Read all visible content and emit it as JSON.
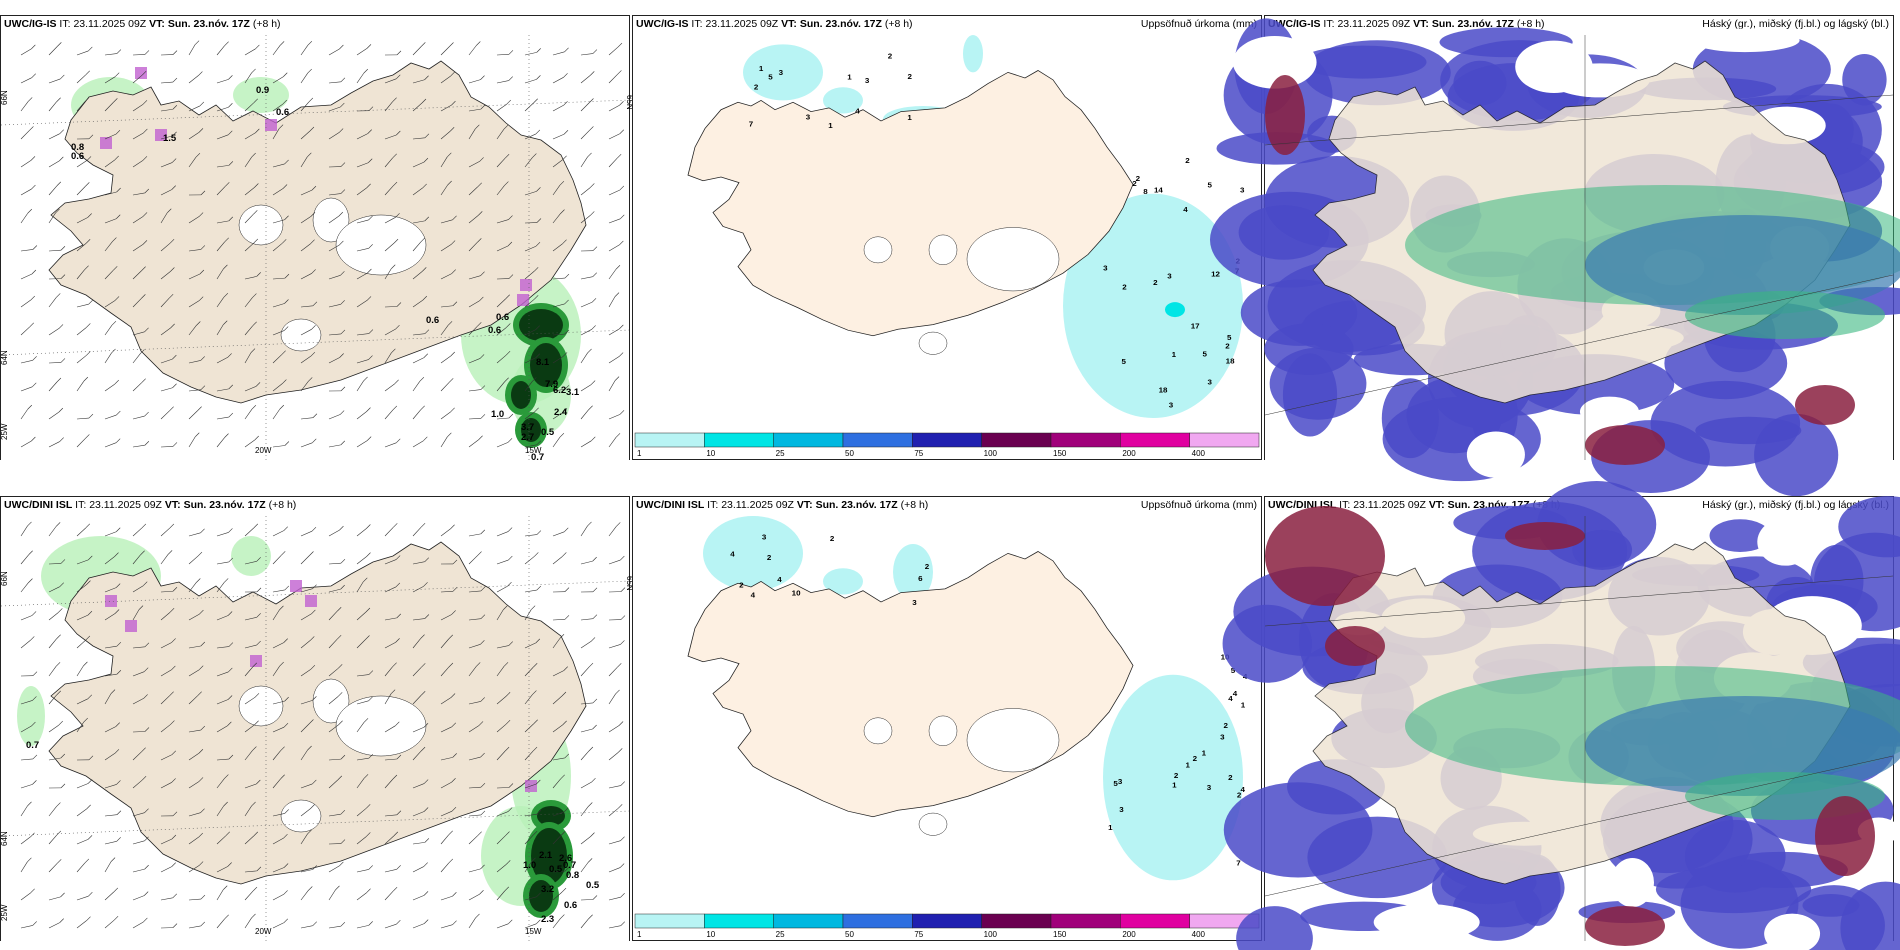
{
  "panels": [
    {
      "row": 0,
      "col": 0,
      "type": "precip-wind",
      "model": "UWC/IG-IS",
      "it_label": "IT:",
      "it_value": "23.11.2025 09Z",
      "vt_label": "VT:",
      "vt_value": "Sun. 23.nóv. 17Z",
      "lead": "(+8 h)",
      "right_title": "",
      "axis_labels": [
        "66N",
        "64N",
        "25W",
        "20W",
        "15W",
        "65N"
      ],
      "values": [
        "0.9",
        "0.6",
        "0.8",
        "0.6",
        "1.5",
        "0.6",
        "0.6",
        "0.6",
        "8.1",
        "7.9",
        "6.2",
        "3.1",
        "2.4",
        "1.0",
        "3.7",
        "2.7",
        "0.5",
        "0.7"
      ]
    },
    {
      "row": 0,
      "col": 1,
      "type": "accum-precip",
      "model": "UWC/IG-IS",
      "it_label": "IT:",
      "it_value": "23.11.2025 09Z",
      "vt_label": "VT:",
      "vt_value": "Sun. 23.nóv. 17Z",
      "lead": "(+8 h)",
      "right_title": "Uppsöfnuð úrkoma (mm)",
      "values": [
        "4",
        "2",
        "2",
        "3",
        "1",
        "1",
        "3",
        "2",
        "1",
        "1",
        "5",
        "7",
        "3",
        "2",
        "3",
        "2",
        "2",
        "3",
        "1",
        "2",
        "2",
        "18",
        "2",
        "17",
        "14",
        "18",
        "5",
        "8",
        "5",
        "3",
        "3",
        "5",
        "5",
        "12",
        "4",
        "7",
        "3",
        "2"
      ]
    },
    {
      "row": 0,
      "col": 2,
      "type": "cloud",
      "model": "UWC/IG-IS",
      "it_label": "IT:",
      "it_value": "23.11.2025 09Z",
      "vt_label": "VT:",
      "vt_value": "Sun. 23.nóv. 17Z",
      "lead": "(+8 h)",
      "right_title": "Háský (gr.), miðský (fj.bl.) og lágský (bl.)"
    },
    {
      "row": 1,
      "col": 0,
      "type": "precip-wind",
      "model": "UWC/DINI ISL",
      "it_label": "IT:",
      "it_value": "23.11.2025 09Z",
      "vt_label": "VT:",
      "vt_value": "Sun. 23.nóv. 17Z",
      "lead": "(+8 h)",
      "right_title": "",
      "axis_labels": [
        "66N",
        "64N",
        "25W",
        "20W",
        "15W",
        "65N"
      ],
      "values": [
        "0.7",
        "2.1",
        "2.6",
        "1.0",
        "0.5",
        "0.7",
        "0.8",
        "3.2",
        "0.5",
        "0.6",
        "2.3"
      ]
    },
    {
      "row": 1,
      "col": 1,
      "type": "accum-precip",
      "model": "UWC/DINI ISL",
      "it_label": "IT:",
      "it_value": "23.11.2025 09Z",
      "vt_label": "VT:",
      "vt_value": "Sun. 23.nóv. 17Z",
      "lead": "(+8 h)",
      "right_title": "Uppsöfnuð úrkoma (mm)",
      "values": [
        "2",
        "2",
        "4",
        "10",
        "6",
        "2",
        "3",
        "4",
        "4",
        "3",
        "2",
        "1",
        "2",
        "1",
        "2",
        "1",
        "4",
        "5",
        "3",
        "2",
        "5",
        "10",
        "7",
        "3",
        "4",
        "1",
        "4",
        "4",
        "3",
        "1",
        "2",
        "3",
        "2"
      ]
    },
    {
      "row": 1,
      "col": 2,
      "type": "cloud",
      "model": "UWC/DINI ISL",
      "it_label": "IT:",
      "it_value": "23.11.2025 09Z",
      "vt_label": "VT:",
      "vt_value": "Sun. 23.nóv. 17Z",
      "lead": "(+8 h)",
      "right_title": "Háský (gr.), miðský (fj.bl.) og lágský (bl.)"
    }
  ],
  "colorbar": {
    "ticks": [
      "1",
      "10",
      "25",
      "50",
      "75",
      "100",
      "150",
      "200",
      "400"
    ],
    "colors": [
      "#b8f4f4",
      "#00e5e5",
      "#00b8e0",
      "#2e6fe0",
      "#2020b0",
      "#6a0050",
      "#a0007a",
      "#e000a0",
      "#f0a8f0"
    ]
  },
  "colors": {
    "land": "#efe4d4",
    "land_accum": "#fdf0e2",
    "coast": "#222222",
    "precip_light": "#b8f0b8",
    "precip_mid": "#2a9a3a",
    "precip_heavy": "#0a3a12",
    "snow_purple": "#c060d0",
    "low_cloud": "#4a4ac8",
    "mid_cloud": "#3a7ab0",
    "high_cloud": "#3ab880",
    "red_cloud": "#8a2040"
  }
}
